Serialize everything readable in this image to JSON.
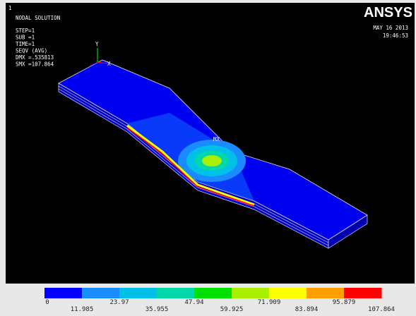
{
  "window": {
    "number": "1",
    "title": "NODAL SOLUTION",
    "params": [
      "STEP=1",
      "SUB =1",
      "TIME=1",
      "SEQV      (AVG)",
      "DMX =.535813",
      "SMX =107.864"
    ],
    "logo": "ANSYS",
    "date": "MAY 16 2013",
    "time": "19:46:53",
    "max_marker": "MX",
    "axis_y": "Y",
    "axis_x": "X"
  },
  "legend": {
    "colors": [
      "#0000ff",
      "#1a8cff",
      "#00c0e8",
      "#00d8a8",
      "#00e000",
      "#a8f000",
      "#ffff00",
      "#ffa000",
      "#ff0000"
    ],
    "labels": [
      "0",
      "11.985",
      "23.97",
      "35.955",
      "47.94",
      "59.925",
      "71.909",
      "83.894",
      "95.879",
      "107.864"
    ]
  }
}
